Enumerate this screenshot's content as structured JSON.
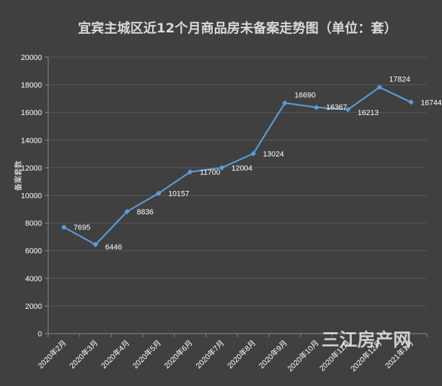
{
  "chart_data": {
    "type": "line",
    "title": "宜宾主城区近12个月商品房未备案走势图（单位：套）",
    "ylabel": "备案套数",
    "xlabel": "",
    "categories": [
      "2020年2月",
      "2020年3月",
      "2020年4月",
      "2020年5月",
      "2020年6月",
      "2020年7月",
      "2020年8月",
      "2020年9月",
      "2020年10月",
      "2020年11月",
      "2020年12月",
      "2021年1月"
    ],
    "values": [
      7695,
      6446,
      8836,
      10157,
      11700,
      12004,
      13024,
      16690,
      16367,
      16213,
      17824,
      16744
    ],
    "ylim": [
      0,
      20000
    ],
    "yticks": [
      0,
      2000,
      4000,
      6000,
      8000,
      10000,
      12000,
      14000,
      16000,
      18000,
      20000
    ],
    "grid": true,
    "legend": "none",
    "line_color": "#5b9bd5",
    "text_color": "#ffffff",
    "background": "#404040"
  },
  "watermark": "三江房产网"
}
